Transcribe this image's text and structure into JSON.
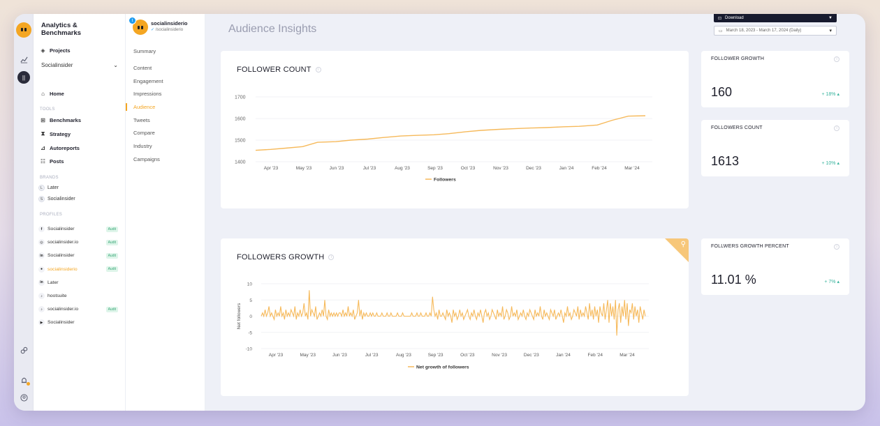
{
  "rail": {
    "icons": [
      "logo-icon",
      "chart-icon",
      "avatar-icon",
      "link-icon",
      "bell-icon",
      "user-icon"
    ]
  },
  "nav": {
    "title": "Analytics & Benchmarks",
    "projects_label": "Projects",
    "workspace_select": "Socialinsider",
    "home_label": "Home",
    "tools_section": "TOOLS",
    "tools": [
      "Benchmarks",
      "Strategy",
      "Autoreports",
      "Posts"
    ],
    "brands_section": "BRANDS",
    "brands": [
      {
        "letter": "L",
        "name": "Later"
      },
      {
        "letter": "S",
        "name": "Socialinsider"
      }
    ],
    "profiles_section": "PROFILES",
    "profiles": [
      {
        "network": "f",
        "name": "Socialinsider",
        "badge": "Audit"
      },
      {
        "network": "◎",
        "name": "socialinsider.io",
        "badge": "Audit"
      },
      {
        "network": "in",
        "name": "Socialinsider",
        "badge": "Audit"
      },
      {
        "network": "●",
        "name": "socialinsiderio",
        "badge": "Audit",
        "active": true
      },
      {
        "network": "in",
        "name": "Later",
        "badge": ""
      },
      {
        "network": "♪",
        "name": "hootsuite",
        "badge": ""
      },
      {
        "network": "♪",
        "name": "socialinsider.io",
        "badge": "Audit"
      },
      {
        "network": "▶",
        "name": "Socialinsider",
        "badge": ""
      }
    ]
  },
  "account": {
    "name": "socialinsiderio",
    "handle": "/socialinsiderio"
  },
  "subnav": {
    "items": [
      "Summary",
      "Content",
      "Engagement",
      "Impressions",
      "Audience",
      "Tweets",
      "Compare",
      "Industry",
      "Campaigns"
    ],
    "active": "Audience"
  },
  "header": {
    "title": "Audience Insights",
    "download_label": "Download",
    "date_range": "March 18, 2023 - March 17, 2024 (Daily)"
  },
  "follower_count_card": {
    "title": "FOLLOWER COUNT"
  },
  "followers_growth_card": {
    "title": "FOLLOWERS GROWTH"
  },
  "stats": {
    "follower_growth": {
      "title": "FOLLOWER GROWTH",
      "value": "160",
      "change": "+ 18%"
    },
    "followers_count": {
      "title": "FOLLOWERS COUNT",
      "value": "1613",
      "change": "+ 10%"
    },
    "growth_percent": {
      "title": "FOLLWERS GROWTH PERCENT",
      "value": "11.01 %",
      "change": "+ 7%"
    }
  },
  "colors": {
    "accent": "#f4a623",
    "positive": "#37b39d",
    "line": "#f6b95a"
  },
  "chart_data": [
    {
      "type": "line",
      "title": "FOLLOWER COUNT",
      "x_ticks": [
        "Apr '23",
        "May '23",
        "Jun '23",
        "Jul '23",
        "Aug '23",
        "Sep '23",
        "Oct '23",
        "Nov '23",
        "Dec '23",
        "Jan '24",
        "Feb '24",
        "Mar '24"
      ],
      "y_ticks": [
        1400,
        1500,
        1600,
        1700
      ],
      "ylim": [
        1400,
        1700
      ],
      "series": [
        {
          "name": "Followers",
          "x": [
            "2023-03-18",
            "2023-04-01",
            "2023-04-15",
            "2023-05-01",
            "2023-05-15",
            "2023-06-01",
            "2023-06-15",
            "2023-07-01",
            "2023-07-15",
            "2023-08-01",
            "2023-08-15",
            "2023-09-01",
            "2023-09-15",
            "2023-10-01",
            "2023-10-15",
            "2023-11-01",
            "2023-11-15",
            "2023-12-01",
            "2023-12-15",
            "2024-01-01",
            "2024-01-15",
            "2024-02-01",
            "2024-02-15",
            "2024-03-01",
            "2024-03-17"
          ],
          "values": [
            1453,
            1457,
            1463,
            1470,
            1490,
            1493,
            1500,
            1505,
            1512,
            1519,
            1522,
            1525,
            1530,
            1539,
            1545,
            1550,
            1553,
            1556,
            1558,
            1562,
            1564,
            1570,
            1592,
            1611,
            1613
          ]
        }
      ]
    },
    {
      "type": "line",
      "title": "FOLLOWERS GROWTH",
      "ylabel": "Net followers",
      "x_ticks": [
        "Apr '23",
        "May '23",
        "Jun '23",
        "Jul '23",
        "Aug '23",
        "Sep '23",
        "Oct '23",
        "Nov '23",
        "Dec '23",
        "Jan '24",
        "Feb '24",
        "Mar '24"
      ],
      "y_ticks": [
        -10,
        -5,
        0,
        5,
        10
      ],
      "ylim": [
        -10,
        10
      ],
      "series": [
        {
          "name": "Net growth of followers",
          "values": [
            0,
            1,
            0,
            2,
            0,
            1,
            3,
            0,
            1,
            0,
            -1,
            2,
            0,
            1,
            0,
            3,
            0,
            1,
            -1,
            2,
            0,
            1,
            0,
            2,
            1,
            0,
            3,
            -1,
            1,
            0,
            2,
            0,
            1,
            4,
            0,
            1,
            -1,
            8,
            0,
            2,
            1,
            0,
            3,
            -1,
            0,
            1,
            0,
            2,
            0,
            5,
            0,
            -1,
            2,
            0,
            1,
            0,
            1,
            0,
            1,
            0,
            1,
            1,
            0,
            2,
            0,
            1,
            0,
            3,
            0,
            1,
            0,
            2,
            -1,
            0,
            1,
            5,
            0,
            2,
            -1,
            1,
            0,
            1,
            0,
            0,
            1,
            0,
            1,
            0,
            0,
            1,
            0,
            0,
            0,
            1,
            0,
            0,
            0,
            1,
            0,
            0,
            1,
            0,
            0,
            0,
            0,
            1,
            0,
            0,
            0,
            1,
            0,
            0,
            0,
            0,
            0,
            0,
            1,
            0,
            0,
            0,
            1,
            0,
            0,
            1,
            0,
            0,
            0,
            1,
            0,
            0,
            1,
            0,
            6,
            2,
            0,
            1,
            -1,
            2,
            0,
            0,
            1,
            0,
            -1,
            2,
            0,
            1,
            0,
            -2,
            2,
            0,
            1,
            -1,
            0,
            2,
            0,
            1,
            -1,
            0,
            1,
            2,
            0,
            -1,
            1,
            0,
            2,
            0,
            -1,
            1,
            0,
            2,
            0,
            -2,
            1,
            2,
            0,
            1,
            -1,
            0,
            2,
            1,
            0,
            -1,
            2,
            0,
            1,
            0,
            3,
            -1,
            0,
            2,
            1,
            -1,
            0,
            3,
            0,
            1,
            0,
            2,
            -1,
            0,
            1,
            0,
            2,
            0,
            -1,
            1,
            0,
            2,
            1,
            0,
            -1,
            2,
            0,
            1,
            0,
            3,
            0,
            -1,
            2,
            0,
            1,
            0,
            -1,
            2,
            1,
            0,
            2,
            -1,
            0,
            1,
            0,
            2,
            0,
            -2,
            1,
            0,
            3,
            0,
            1,
            -1,
            0,
            2,
            1,
            0,
            3,
            -1,
            2,
            0,
            1,
            0,
            3,
            1,
            -1,
            4,
            0,
            2,
            -1,
            3,
            0,
            2,
            -2,
            3,
            1,
            0,
            4,
            -1,
            2,
            5,
            -2,
            4,
            0,
            3,
            -1,
            5,
            -6,
            2,
            4,
            -2,
            3,
            0,
            5,
            -1,
            4,
            -3,
            2,
            1,
            4,
            -1,
            3,
            0,
            2,
            -2,
            3,
            1,
            -1,
            2,
            0
          ]
        }
      ]
    }
  ]
}
